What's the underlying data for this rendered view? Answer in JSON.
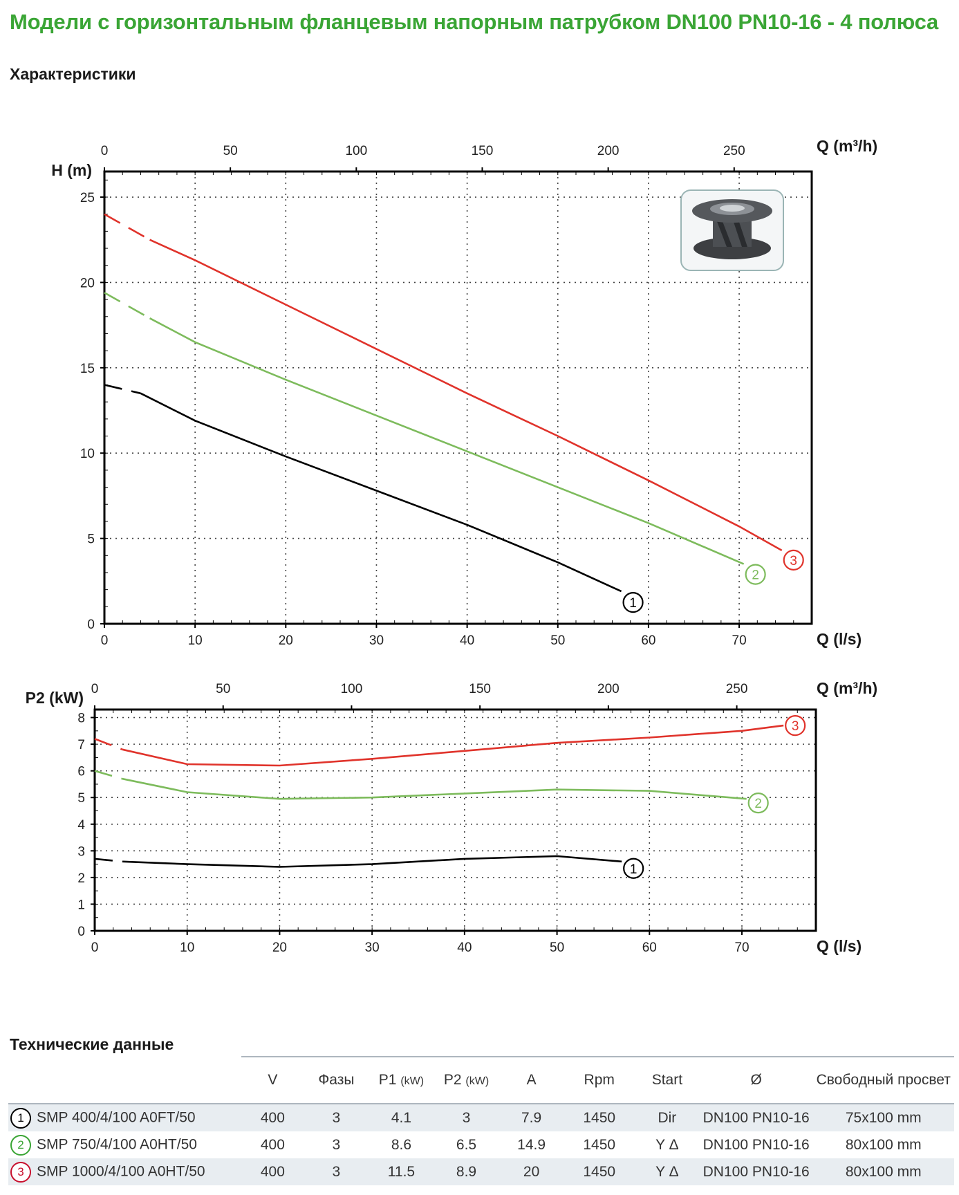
{
  "page_title": "Модели с горизонтальным фланцевым напорным патрубком DN100 PN10-16 - 4 полюса",
  "section_characteristics": "Характеристики",
  "section_tech": "Технические данные",
  "colors": {
    "curve_1": "#000000",
    "curve_2": "#7dbb5c",
    "curve_3": "#e0332b",
    "title": "#3aa535"
  },
  "chart_data": [
    {
      "type": "line",
      "title": "",
      "xlabel": "Q (l/s)",
      "x2label": "Q (m³/h)",
      "ylabel": "H (m)",
      "xlim": [
        0,
        78
      ],
      "ylim": [
        0,
        26.5
      ],
      "x_ticks": [
        0,
        10,
        20,
        30,
        40,
        50,
        60,
        70
      ],
      "x2_ticks": [
        0,
        50,
        100,
        150,
        200,
        250
      ],
      "y_ticks": [
        0,
        5,
        10,
        15,
        20,
        25
      ],
      "grid": true,
      "series": [
        {
          "name": "1",
          "x": [
            0,
            4,
            10,
            20,
            30,
            40,
            50,
            57
          ],
          "y": [
            14,
            13.5,
            11.9,
            9.8,
            7.8,
            5.8,
            3.6,
            1.9
          ]
        },
        {
          "name": "2",
          "x": [
            0,
            5,
            10,
            20,
            30,
            40,
            50,
            60,
            70.5
          ],
          "y": [
            19.4,
            17.9,
            16.5,
            14.3,
            12.2,
            10.1,
            8.0,
            5.9,
            3.5
          ]
        },
        {
          "name": "3",
          "x": [
            0,
            5,
            10,
            20,
            30,
            40,
            50,
            60,
            70,
            74.7
          ],
          "y": [
            24.0,
            22.5,
            21.3,
            18.7,
            16.1,
            13.5,
            11.0,
            8.4,
            5.7,
            4.3
          ]
        }
      ]
    },
    {
      "type": "line",
      "title": "",
      "xlabel": "Q (l/s)",
      "x2label": "Q (m³/h)",
      "ylabel": "P2 (kW)",
      "xlim": [
        0,
        78
      ],
      "ylim": [
        0,
        8.3
      ],
      "x_ticks": [
        0,
        10,
        20,
        30,
        40,
        50,
        60,
        70
      ],
      "x2_ticks": [
        0,
        50,
        100,
        150,
        200,
        250
      ],
      "y_ticks": [
        0,
        1,
        2,
        3,
        4,
        5,
        6,
        7,
        8
      ],
      "grid": true,
      "series": [
        {
          "name": "1",
          "x": [
            0,
            3,
            10,
            20,
            30,
            40,
            50,
            57
          ],
          "y": [
            2.7,
            2.6,
            2.5,
            2.4,
            2.5,
            2.7,
            2.8,
            2.6
          ]
        },
        {
          "name": "2",
          "x": [
            0,
            3,
            10,
            20,
            30,
            40,
            50,
            60,
            70.5
          ],
          "y": [
            6.0,
            5.7,
            5.2,
            4.95,
            5.0,
            5.15,
            5.3,
            5.25,
            4.95
          ]
        },
        {
          "name": "3",
          "x": [
            0,
            3,
            10,
            20,
            30,
            40,
            50,
            60,
            70,
            74.5
          ],
          "y": [
            7.2,
            6.8,
            6.25,
            6.2,
            6.45,
            6.75,
            7.05,
            7.25,
            7.5,
            7.7
          ]
        }
      ]
    }
  ],
  "inset_image": "pump-impeller-image",
  "table": {
    "headers": [
      "",
      "V",
      "Фазы",
      "P1",
      "P2",
      "A",
      "Rpm",
      "Start",
      "Ø",
      "Свободный просвет"
    ],
    "unit_kw": "(kW)",
    "rows": [
      {
        "num": "1",
        "model": "SMP 400/4/100 A0FT/50",
        "V": "400",
        "phases": "3",
        "P1": "4.1",
        "P2": "3",
        "A": "7.9",
        "rpm": "1450",
        "start": "Dir",
        "dn": "DN100 PN10-16",
        "passage": "75x100 mm"
      },
      {
        "num": "2",
        "model": "SMP 750/4/100 A0HT/50",
        "V": "400",
        "phases": "3",
        "P1": "8.6",
        "P2": "6.5",
        "A": "14.9",
        "rpm": "1450",
        "start": "Y Δ",
        "dn": "DN100 PN10-16",
        "passage": "80x100 mm"
      },
      {
        "num": "3",
        "model": "SMP 1000/4/100 A0HT/50",
        "V": "400",
        "phases": "3",
        "P1": "11.5",
        "P2": "8.9",
        "A": "20",
        "rpm": "1450",
        "start": "Y Δ",
        "dn": "DN100 PN10-16",
        "passage": "80x100 mm"
      }
    ]
  }
}
